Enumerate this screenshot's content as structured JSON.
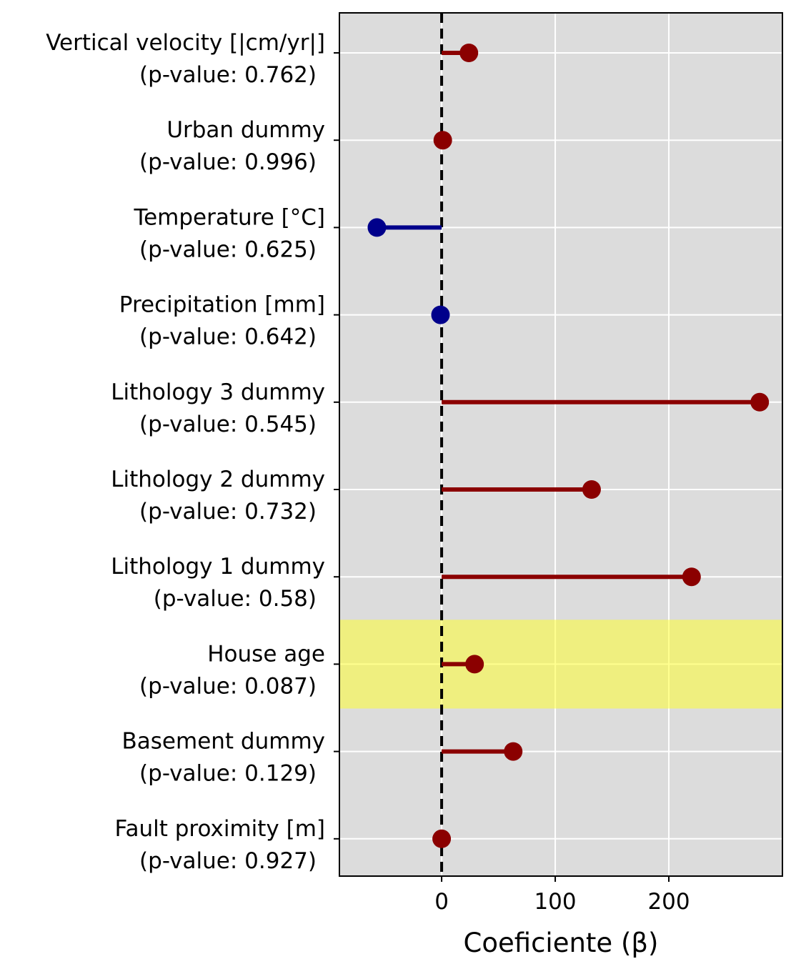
{
  "chart_data": {
    "type": "lollipop",
    "xlabel": "Coeficiente (β)",
    "ylabel": "",
    "xlim": [
      -90,
      300
    ],
    "xticks": [
      0,
      100,
      200
    ],
    "grid": true,
    "reference_line": {
      "x": 0,
      "style": "dashed",
      "color": "#000000"
    },
    "highlight": {
      "category": "House age",
      "color": "#ffff33"
    },
    "colors": {
      "positive": "#8b0000",
      "negative": "#00008b",
      "background": "#dcdcdc",
      "grid": "#ffffff"
    },
    "categories": [
      {
        "name": "Vertical velocity [|cm/yr|]",
        "pvalue_label": "(p-value: 0.762)",
        "coef": 24
      },
      {
        "name": "Urban dummy",
        "pvalue_label": "(p-value: 0.996)",
        "coef": 1
      },
      {
        "name": "Temperature [°C]",
        "pvalue_label": "(p-value: 0.625)",
        "coef": -57
      },
      {
        "name": "Precipitation [mm]",
        "pvalue_label": "(p-value: 0.642)",
        "coef": -1
      },
      {
        "name": "Lithology 3 dummy",
        "pvalue_label": "(p-value: 0.545)",
        "coef": 280
      },
      {
        "name": "Lithology 2 dummy",
        "pvalue_label": "(p-value: 0.732)",
        "coef": 132
      },
      {
        "name": "Lithology 1 dummy",
        "pvalue_label": "(p-value: 0.58)",
        "coef": 220
      },
      {
        "name": "House age",
        "pvalue_label": "(p-value: 0.087)",
        "coef": 29
      },
      {
        "name": "Basement dummy",
        "pvalue_label": "(p-value: 0.129)",
        "coef": 63
      },
      {
        "name": "Fault proximity [m]",
        "pvalue_label": "(p-value: 0.927)",
        "coef": 0
      }
    ]
  }
}
